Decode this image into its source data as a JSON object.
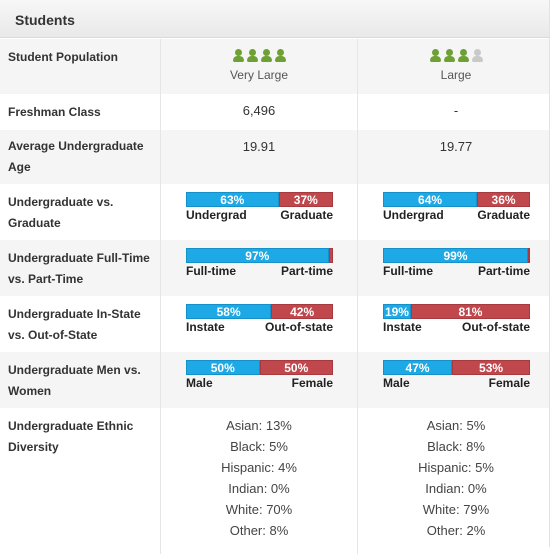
{
  "section_title": "Students",
  "rows": {
    "population": {
      "label": "Student Population",
      "col1": {
        "icons_on": 4,
        "icons_total": 4,
        "text": "Very Large"
      },
      "col2": {
        "icons_on": 3,
        "icons_total": 4,
        "text": "Large"
      }
    },
    "freshman": {
      "label": "Freshman Class",
      "col1": "6,496",
      "col2": "-"
    },
    "age": {
      "label": "Average Undergraduate Age",
      "col1": "19.91",
      "col2": "19.77"
    },
    "ug_grad": {
      "label": "Undergraduate vs. Graduate",
      "left_label": "Undergrad",
      "right_label": "Graduate",
      "col1": {
        "left_pct": 63,
        "left_text": "63%",
        "right_text": "37%"
      },
      "col2": {
        "left_pct": 64,
        "left_text": "64%",
        "right_text": "36%"
      }
    },
    "ft_pt": {
      "label": "Undergraduate Full-Time vs. Part-Time",
      "left_label": "Full-time",
      "right_label": "Part-time",
      "col1": {
        "left_pct": 97,
        "left_text": "97%",
        "right_text": ""
      },
      "col2": {
        "left_pct": 99,
        "left_text": "99%",
        "right_text": ""
      }
    },
    "instate": {
      "label": "Undergraduate In-State vs. Out-of-State",
      "left_label": "Instate",
      "right_label": "Out-of-state",
      "col1": {
        "left_pct": 58,
        "left_text": "58%",
        "right_text": "42%"
      },
      "col2": {
        "left_pct": 19,
        "left_text": "19%",
        "right_text": "81%"
      }
    },
    "gender": {
      "label": "Undergraduate Men vs. Women",
      "left_label": "Male",
      "right_label": "Female",
      "col1": {
        "left_pct": 50,
        "left_text": "50%",
        "right_text": "50%"
      },
      "col2": {
        "left_pct": 47,
        "left_text": "47%",
        "right_text": "53%"
      }
    },
    "ethnic": {
      "label": "Undergraduate Ethnic Diversity",
      "col1": [
        "Asian: 13%",
        "Black: 5%",
        "Hispanic: 4%",
        "Indian: 0%",
        "White: 70%",
        "Other: 8%"
      ],
      "col2": [
        "Asian: 5%",
        "Black: 8%",
        "Hispanic: 5%",
        "Indian: 0%",
        "White: 79%",
        "Other: 2%"
      ]
    }
  },
  "colors": {
    "blue": "#1da8e6",
    "red": "#c0474c",
    "icon_on": "#6ea033",
    "icon_off": "#c9c9c9"
  },
  "icons": {
    "population": "person-icon"
  }
}
